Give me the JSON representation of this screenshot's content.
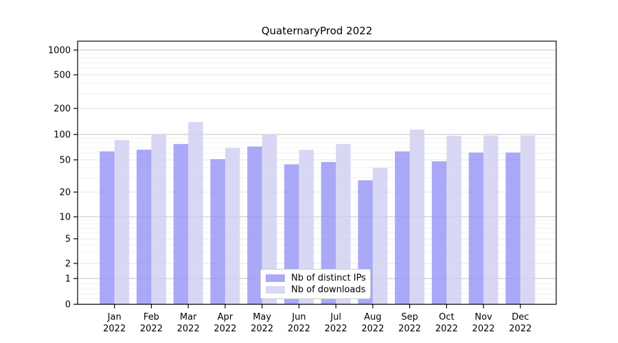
{
  "chart_data": {
    "type": "bar",
    "title": "QuaternaryProd 2022",
    "categories": [
      "Jan 2022",
      "Feb 2022",
      "Mar 2022",
      "Apr 2022",
      "May 2022",
      "Jun 2022",
      "Jul 2022",
      "Aug 2022",
      "Sep 2022",
      "Oct 2022",
      "Nov 2022",
      "Dec 2022"
    ],
    "series": [
      {
        "name": "Nb of distinct IPs",
        "color": "#a9a9f7",
        "fill_rgba": "rgba(148,148,245,0.8)",
        "values": [
          63,
          66,
          77,
          51,
          72,
          44,
          47,
          28,
          63,
          48,
          61,
          61
        ]
      },
      {
        "name": "Nb of downloads",
        "color": "#d8d8f7",
        "fill_rgba": "rgba(206,206,243,0.8)",
        "values": [
          86,
          100,
          139,
          69,
          101,
          66,
          77,
          40,
          114,
          96,
          97,
          97
        ]
      }
    ],
    "yscale": "symlog",
    "yticks": [
      0,
      1,
      2,
      5,
      10,
      20,
      50,
      100,
      200,
      500,
      1000
    ],
    "ylim": [
      0,
      1300
    ],
    "xlabel": "",
    "ylabel": "",
    "grid": "horizontal",
    "legend_position": "lower center",
    "colors": {
      "axis": "#000000",
      "grid_major": "#c0c0c0",
      "grid_sub": "#e5e5e5",
      "grid_minor": "#f0f0f0",
      "background": "#ffffff"
    }
  }
}
